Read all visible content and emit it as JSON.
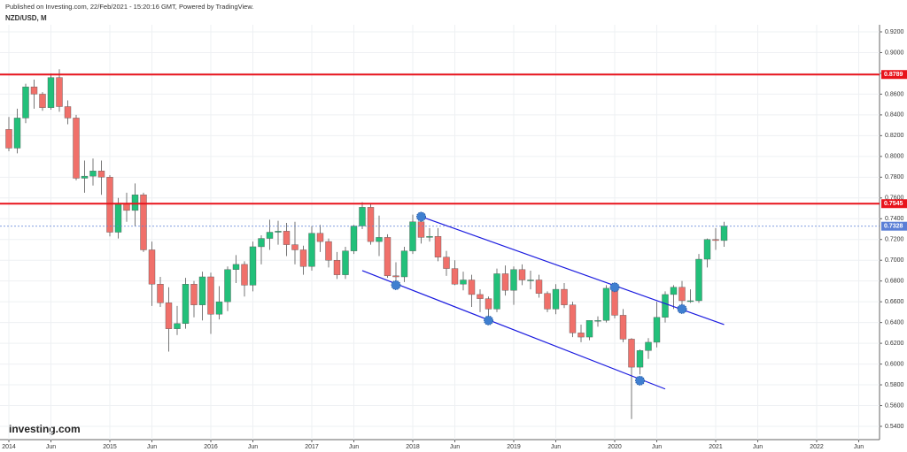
{
  "chart_data": {
    "type": "candlestick",
    "published": "Published on Investing.com, 22/Feb/2021 - 15:20:16 GMT, Powered by TradingView.",
    "title": "NZD/USD, M",
    "logo": "Investing.com",
    "x": [
      "2014-01",
      "2014-02",
      "2014-03",
      "2014-04",
      "2014-05",
      "2014-06",
      "2014-07",
      "2014-08",
      "2014-09",
      "2014-10",
      "2014-11",
      "2014-12",
      "2015-01",
      "2015-02",
      "2015-03",
      "2015-04",
      "2015-05",
      "2015-06",
      "2015-07",
      "2015-08",
      "2015-09",
      "2015-10",
      "2015-11",
      "2015-12",
      "2016-01",
      "2016-02",
      "2016-03",
      "2016-04",
      "2016-05",
      "2016-06",
      "2016-07",
      "2016-08",
      "2016-09",
      "2016-10",
      "2016-11",
      "2016-12",
      "2017-01",
      "2017-02",
      "2017-03",
      "2017-04",
      "2017-05",
      "2017-06",
      "2017-07",
      "2017-08",
      "2017-09",
      "2017-10",
      "2017-11",
      "2017-12",
      "2018-01",
      "2018-02",
      "2018-03",
      "2018-04",
      "2018-05",
      "2018-06",
      "2018-07",
      "2018-08",
      "2018-09",
      "2018-10",
      "2018-11",
      "2018-12",
      "2019-01",
      "2019-02",
      "2019-03",
      "2019-04",
      "2019-05",
      "2019-06",
      "2019-07",
      "2019-08",
      "2019-09",
      "2019-10",
      "2019-11",
      "2019-12",
      "2020-01",
      "2020-02",
      "2020-03",
      "2020-04",
      "2020-05",
      "2020-06",
      "2020-07",
      "2020-08",
      "2020-09",
      "2020-10",
      "2020-11",
      "2020-12",
      "2021-01",
      "2021-02"
    ],
    "open": [
      0.826,
      0.808,
      0.837,
      0.867,
      0.86,
      0.847,
      0.876,
      0.848,
      0.837,
      0.779,
      0.781,
      0.786,
      0.78,
      0.727,
      0.755,
      0.748,
      0.763,
      0.71,
      0.677,
      0.659,
      0.634,
      0.639,
      0.677,
      0.657,
      0.684,
      0.648,
      0.66,
      0.691,
      0.696,
      0.676,
      0.713,
      0.721,
      0.727,
      0.728,
      0.715,
      0.71,
      0.694,
      0.726,
      0.718,
      0.7,
      0.686,
      0.709,
      0.733,
      0.751,
      0.718,
      0.722,
      0.685,
      0.684,
      0.709,
      0.737,
      0.722,
      0.723,
      0.703,
      0.692,
      0.677,
      0.681,
      0.667,
      0.663,
      0.653,
      0.687,
      0.671,
      0.691,
      0.681,
      0.681,
      0.668,
      0.653,
      0.672,
      0.657,
      0.63,
      0.626,
      0.642,
      0.642,
      0.673,
      0.647,
      0.624,
      0.597,
      0.613,
      0.621,
      0.645,
      0.667,
      0.674,
      0.661,
      0.661,
      0.701,
      0.72,
      0.719
    ],
    "high": [
      0.838,
      0.846,
      0.87,
      0.874,
      0.862,
      0.88,
      0.884,
      0.854,
      0.84,
      0.796,
      0.798,
      0.796,
      0.782,
      0.76,
      0.765,
      0.774,
      0.765,
      0.718,
      0.684,
      0.674,
      0.656,
      0.683,
      0.68,
      0.689,
      0.688,
      0.675,
      0.694,
      0.705,
      0.699,
      0.718,
      0.724,
      0.739,
      0.738,
      0.736,
      0.737,
      0.714,
      0.733,
      0.734,
      0.721,
      0.708,
      0.713,
      0.734,
      0.756,
      0.755,
      0.743,
      0.725,
      0.698,
      0.713,
      0.744,
      0.744,
      0.731,
      0.731,
      0.709,
      0.7,
      0.689,
      0.686,
      0.672,
      0.665,
      0.692,
      0.695,
      0.694,
      0.696,
      0.69,
      0.686,
      0.67,
      0.677,
      0.678,
      0.66,
      0.638,
      0.642,
      0.646,
      0.676,
      0.678,
      0.653,
      0.625,
      0.614,
      0.625,
      0.66,
      0.67,
      0.676,
      0.68,
      0.672,
      0.706,
      0.721,
      0.731,
      0.737
    ],
    "low": [
      0.805,
      0.803,
      0.832,
      0.846,
      0.844,
      0.845,
      0.843,
      0.831,
      0.777,
      0.765,
      0.772,
      0.763,
      0.723,
      0.721,
      0.737,
      0.733,
      0.708,
      0.656,
      0.655,
      0.612,
      0.628,
      0.634,
      0.645,
      0.642,
      0.629,
      0.643,
      0.651,
      0.678,
      0.665,
      0.67,
      0.696,
      0.71,
      0.715,
      0.704,
      0.696,
      0.686,
      0.69,
      0.708,
      0.693,
      0.682,
      0.682,
      0.706,
      0.73,
      0.715,
      0.704,
      0.683,
      0.676,
      0.679,
      0.706,
      0.716,
      0.718,
      0.699,
      0.685,
      0.676,
      0.671,
      0.655,
      0.65,
      0.643,
      0.65,
      0.666,
      0.657,
      0.676,
      0.672,
      0.664,
      0.65,
      0.648,
      0.654,
      0.626,
      0.621,
      0.623,
      0.636,
      0.64,
      0.644,
      0.621,
      0.547,
      0.59,
      0.605,
      0.616,
      0.64,
      0.653,
      0.65,
      0.659,
      0.659,
      0.693,
      0.71,
      0.713
    ],
    "close": [
      0.808,
      0.837,
      0.867,
      0.86,
      0.847,
      0.876,
      0.848,
      0.837,
      0.779,
      0.781,
      0.786,
      0.78,
      0.727,
      0.755,
      0.748,
      0.763,
      0.71,
      0.677,
      0.659,
      0.634,
      0.639,
      0.677,
      0.657,
      0.684,
      0.648,
      0.66,
      0.691,
      0.696,
      0.676,
      0.713,
      0.721,
      0.727,
      0.728,
      0.715,
      0.71,
      0.694,
      0.726,
      0.718,
      0.7,
      0.686,
      0.709,
      0.733,
      0.751,
      0.718,
      0.722,
      0.685,
      0.684,
      0.709,
      0.737,
      0.722,
      0.723,
      0.703,
      0.692,
      0.677,
      0.681,
      0.667,
      0.663,
      0.653,
      0.687,
      0.671,
      0.691,
      0.681,
      0.681,
      0.668,
      0.653,
      0.672,
      0.657,
      0.63,
      0.626,
      0.642,
      0.642,
      0.673,
      0.647,
      0.624,
      0.597,
      0.613,
      0.621,
      0.645,
      0.667,
      0.674,
      0.661,
      0.661,
      0.701,
      0.72,
      0.719,
      0.733
    ],
    "up_color": "#22c07a",
    "down_color": "#f0706a",
    "ylim": [
      0.54,
      0.92
    ],
    "yticks": [
      {
        "value": 0.54,
        "label": "0.5400"
      },
      {
        "value": 0.56,
        "label": "0.5600"
      },
      {
        "value": 0.58,
        "label": "0.5800"
      },
      {
        "value": 0.6,
        "label": "0.6000"
      },
      {
        "value": 0.62,
        "label": "0.6200"
      },
      {
        "value": 0.64,
        "label": "0.6400"
      },
      {
        "value": 0.66,
        "label": "0.6600"
      },
      {
        "value": 0.68,
        "label": "0.6800"
      },
      {
        "value": 0.7,
        "label": "0.7000"
      },
      {
        "value": 0.72,
        "label": "0.7200"
      },
      {
        "value": 0.74,
        "label": "0.7400"
      },
      {
        "value": 0.76,
        "label": "0.7600"
      },
      {
        "value": 0.78,
        "label": "0.7800"
      },
      {
        "value": 0.8,
        "label": "0.8000"
      },
      {
        "value": 0.82,
        "label": "0.8200"
      },
      {
        "value": 0.84,
        "label": "0.8400"
      },
      {
        "value": 0.86,
        "label": "0.8600"
      },
      {
        "value": 0.88,
        "label": "0.8800"
      },
      {
        "value": 0.9,
        "label": "0.9000"
      },
      {
        "value": 0.92,
        "label": "0.9200"
      }
    ],
    "xticks": [
      {
        "value": "2014-01",
        "label": "2014"
      },
      {
        "value": "2014-06",
        "label": "Jun"
      },
      {
        "value": "2015-01",
        "label": "2015"
      },
      {
        "value": "2015-06",
        "label": "Jun"
      },
      {
        "value": "2016-01",
        "label": "2016"
      },
      {
        "value": "2016-06",
        "label": "Jun"
      },
      {
        "value": "2017-01",
        "label": "2017"
      },
      {
        "value": "2017-06",
        "label": "Jun"
      },
      {
        "value": "2018-01",
        "label": "2018"
      },
      {
        "value": "2018-06",
        "label": "Jun"
      },
      {
        "value": "2019-01",
        "label": "2019"
      },
      {
        "value": "2019-06",
        "label": "Jun"
      },
      {
        "value": "2020-01",
        "label": "2020"
      },
      {
        "value": "2020-06",
        "label": "Jun"
      },
      {
        "value": "2021-01",
        "label": "2021"
      },
      {
        "value": "2021-06",
        "label": "Jun"
      },
      {
        "value": "2022-01",
        "label": "2022"
      },
      {
        "value": "2022-06",
        "label": "Jun"
      }
    ],
    "grid": true,
    "hlines": [
      {
        "value": 0.8789,
        "label": "0.8789",
        "color": "#e8141c"
      },
      {
        "value": 0.7545,
        "label": "0.7545",
        "color": "#e8141c"
      }
    ],
    "price_line": {
      "value": 0.7328,
      "label": "0.7328",
      "color": "#5b7fd6"
    },
    "trendlines": [
      {
        "from": {
          "x": "2018-02",
          "y": 0.742
        },
        "to": {
          "x": "2021-02",
          "y": 0.638
        },
        "color": "#1a1adf"
      },
      {
        "from": {
          "x": "2017-07",
          "y": 0.69
        },
        "to": {
          "x": "2020-07",
          "y": 0.576
        },
        "color": "#1a1adf"
      }
    ],
    "markers": [
      {
        "x": "2018-02",
        "y": 0.742
      },
      {
        "x": "2017-11",
        "y": 0.676
      },
      {
        "x": "2018-10",
        "y": 0.642
      },
      {
        "x": "2020-01",
        "y": 0.674
      },
      {
        "x": "2020-04",
        "y": 0.584
      },
      {
        "x": "2020-09",
        "y": 0.653
      }
    ],
    "marker_color": "#3f7fd0"
  }
}
